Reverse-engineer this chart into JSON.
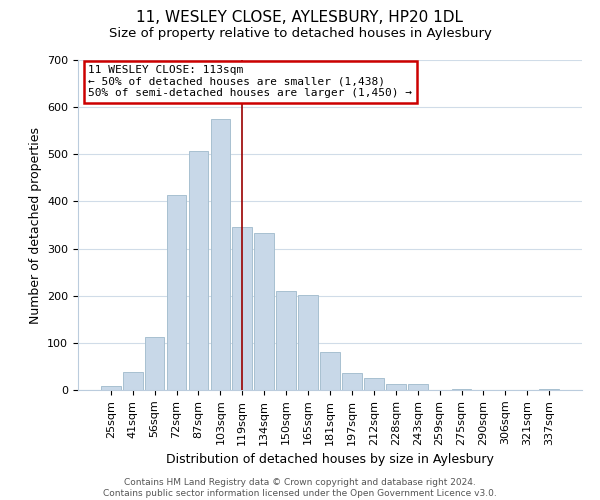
{
  "title": "11, WESLEY CLOSE, AYLESBURY, HP20 1DL",
  "subtitle": "Size of property relative to detached houses in Aylesbury",
  "xlabel": "Distribution of detached houses by size in Aylesbury",
  "ylabel": "Number of detached properties",
  "footer_line1": "Contains HM Land Registry data © Crown copyright and database right 2024.",
  "footer_line2": "Contains public sector information licensed under the Open Government Licence v3.0.",
  "bar_labels": [
    "25sqm",
    "41sqm",
    "56sqm",
    "72sqm",
    "87sqm",
    "103sqm",
    "119sqm",
    "134sqm",
    "150sqm",
    "165sqm",
    "181sqm",
    "197sqm",
    "212sqm",
    "228sqm",
    "243sqm",
    "259sqm",
    "275sqm",
    "290sqm",
    "306sqm",
    "321sqm",
    "337sqm"
  ],
  "bar_values": [
    8,
    38,
    113,
    413,
    507,
    575,
    345,
    332,
    210,
    201,
    80,
    37,
    25,
    12,
    13,
    0,
    3,
    0,
    0,
    0,
    2
  ],
  "bar_color": "#c8d8e8",
  "bar_edge_color": "#a8c0d0",
  "annotation_line_color": "#990000",
  "annotation_box_text": "11 WESLEY CLOSE: 113sqm\n← 50% of detached houses are smaller (1,438)\n50% of semi-detached houses are larger (1,450) →",
  "annotation_box_color": "white",
  "annotation_box_edge_color": "#cc0000",
  "ylim": [
    0,
    700
  ],
  "yticks": [
    0,
    100,
    200,
    300,
    400,
    500,
    600,
    700
  ],
  "bg_color": "white",
  "grid_color": "#d0dce8",
  "title_fontsize": 11,
  "subtitle_fontsize": 9.5,
  "axis_label_fontsize": 9,
  "tick_fontsize": 8,
  "footer_fontsize": 6.5
}
